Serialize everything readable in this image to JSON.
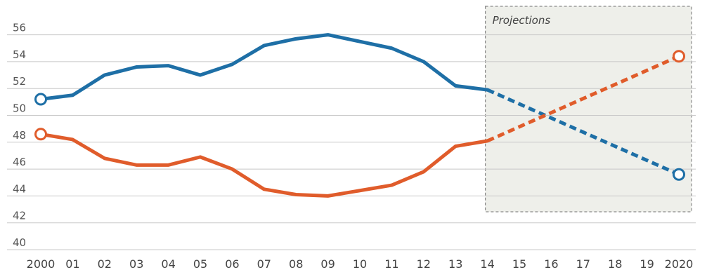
{
  "chart_data": {
    "type": "line",
    "title": "",
    "xlabel": "",
    "ylabel": "",
    "x_labels": [
      "2000",
      "01",
      "02",
      "03",
      "04",
      "05",
      "06",
      "07",
      "08",
      "09",
      "10",
      "11",
      "12",
      "13",
      "14",
      "15",
      "16",
      "17",
      "18",
      "19",
      "2020"
    ],
    "y_ticks": [
      40,
      42,
      44,
      46,
      48,
      50,
      52,
      54,
      56
    ],
    "ylim": [
      40,
      56.5
    ],
    "grid": true,
    "projection": {
      "label": "Projections",
      "start_index": 14,
      "end_index": 20,
      "fill": "#eeefea",
      "border": "#8a8a8a"
    },
    "series": [
      {
        "color": "#1e6fa6",
        "values": [
          51.2,
          51.5,
          53.0,
          53.6,
          53.7,
          53.0,
          53.8,
          55.2,
          55.7,
          56.0,
          55.5,
          55.0,
          54.0,
          52.2,
          51.9,
          null,
          null,
          null,
          null,
          null,
          45.6
        ],
        "projected": [
          51.9,
          50.85,
          49.8,
          48.75,
          47.7,
          46.65,
          45.6
        ]
      },
      {
        "color": "#e05c2b",
        "values": [
          48.6,
          48.2,
          46.8,
          46.3,
          46.3,
          46.9,
          46.0,
          44.5,
          44.1,
          44.0,
          44.4,
          44.8,
          45.8,
          47.7,
          48.1,
          null,
          null,
          null,
          null,
          null,
          54.4
        ],
        "projected": [
          48.1,
          49.15,
          50.2,
          51.25,
          52.3,
          53.35,
          54.4
        ]
      }
    ]
  }
}
